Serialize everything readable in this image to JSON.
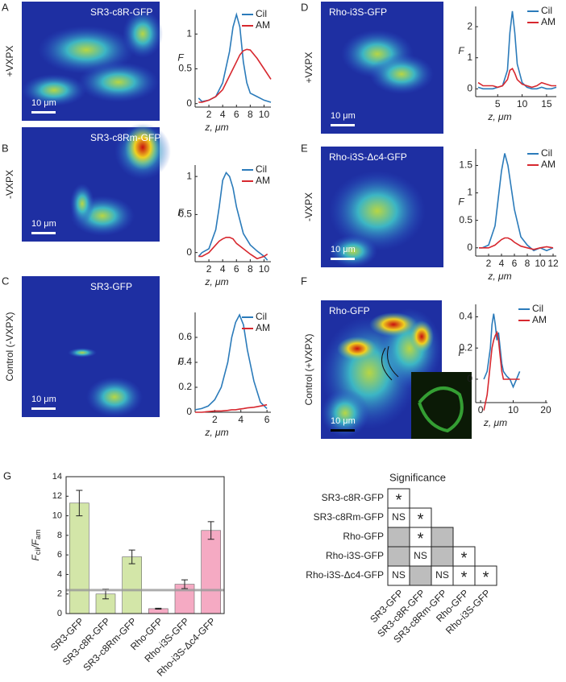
{
  "panels": [
    {
      "letter": "A",
      "condition": "+VXPX",
      "image_label": "SR3-c8R-GFP",
      "scale_bar": "10 μm"
    },
    {
      "letter": "B",
      "condition": "-VXPX",
      "image_label": "SR3-c8Rm-GFP",
      "scale_bar": "10 μm"
    },
    {
      "letter": "C",
      "condition": "Control (-VXPX)",
      "image_label": "SR3-GFP",
      "scale_bar": "10 μm"
    },
    {
      "letter": "D",
      "condition": "+VXPX",
      "image_label": "Rho-i3S-GFP",
      "scale_bar": "10 μm"
    },
    {
      "letter": "E",
      "condition": "-VXPX",
      "image_label": "Rho-i3S-Δc4-GFP",
      "scale_bar": "10 μm"
    },
    {
      "letter": "F",
      "condition": "Control (+VXPX)",
      "image_label": "Rho-GFP",
      "scale_bar": "10 μm"
    }
  ],
  "chart_data": [
    {
      "type": "line",
      "xlabel": "z,  μm",
      "ylabel": "F",
      "xlim": [
        0,
        11
      ],
      "xticks": [
        2,
        4,
        6,
        8,
        10
      ],
      "ylim": [
        -0.05,
        1.35
      ],
      "yticks": [
        0,
        0.5,
        1
      ],
      "x": [
        0.5,
        1,
        2,
        3,
        4,
        5,
        5.5,
        6,
        6.5,
        7,
        7.5,
        8,
        9,
        10,
        11
      ],
      "series": [
        {
          "name": "Cil",
          "color": "#2b7bba",
          "values": [
            0.08,
            0.03,
            0.05,
            0.1,
            0.3,
            0.75,
            1.1,
            1.28,
            1.1,
            0.6,
            0.3,
            0.15,
            0.1,
            0.05,
            0.02
          ]
        },
        {
          "name": "AM",
          "color": "#d7282f",
          "values": [
            0.02,
            0.02,
            0.05,
            0.1,
            0.2,
            0.4,
            0.5,
            0.6,
            0.7,
            0.76,
            0.78,
            0.77,
            0.65,
            0.5,
            0.35
          ]
        }
      ]
    },
    {
      "type": "line",
      "xlabel": "z,  μm",
      "ylabel": "F",
      "xlim": [
        0,
        11
      ],
      "xticks": [
        2,
        4,
        6,
        8,
        10
      ],
      "ylim": [
        -0.12,
        1.15
      ],
      "yticks": [
        0,
        0.5,
        1
      ],
      "x": [
        0.5,
        1,
        2,
        3,
        3.5,
        4,
        4.5,
        5,
        5.5,
        6,
        7,
        8,
        9,
        10,
        10.5
      ],
      "series": [
        {
          "name": "Cil",
          "color": "#2b7bba",
          "values": [
            -0.05,
            0,
            0.05,
            0.3,
            0.6,
            0.95,
            1.05,
            1.0,
            0.85,
            0.6,
            0.25,
            0.1,
            0.02,
            -0.05,
            -0.1
          ]
        },
        {
          "name": "AM",
          "color": "#d7282f",
          "values": [
            -0.05,
            -0.05,
            0,
            0.1,
            0.15,
            0.18,
            0.2,
            0.2,
            0.18,
            0.12,
            0.05,
            -0.02,
            -0.08,
            -0.05,
            -0.02
          ]
        }
      ]
    },
    {
      "type": "line",
      "xlabel": "z,  μm",
      "ylabel": "F",
      "xlim": [
        0.5,
        6.3
      ],
      "xticks": [
        2,
        4,
        6
      ],
      "ylim": [
        0,
        0.8
      ],
      "yticks": [
        0,
        0.2,
        0.4,
        0.6
      ],
      "x": [
        0.5,
        1,
        1.5,
        2,
        2.5,
        3,
        3.3,
        3.6,
        3.9,
        4.2,
        4.5,
        5,
        5.5,
        6
      ],
      "series": [
        {
          "name": "Cil",
          "color": "#2b7bba",
          "values": [
            0.02,
            0.03,
            0.05,
            0.1,
            0.2,
            0.4,
            0.6,
            0.72,
            0.78,
            0.7,
            0.5,
            0.25,
            0.08,
            0.03
          ]
        },
        {
          "name": "AM",
          "color": "#d7282f",
          "values": [
            0,
            0,
            0.005,
            0.01,
            0.01,
            0.015,
            0.02,
            0.02,
            0.025,
            0.03,
            0.035,
            0.04,
            0.05,
            0.06
          ]
        }
      ]
    },
    {
      "type": "line",
      "xlabel": "z,  μm",
      "ylabel": "F",
      "xlim": [
        0.5,
        17
      ],
      "xticks": [
        5,
        10,
        15
      ],
      "ylim": [
        -0.25,
        2.65
      ],
      "yticks": [
        0,
        1,
        2
      ],
      "x": [
        1,
        2,
        4,
        5,
        6,
        7,
        7.5,
        8,
        8.5,
        9,
        10,
        11,
        12,
        13,
        14,
        15,
        16,
        17
      ],
      "series": [
        {
          "name": "Cil",
          "color": "#2b7bba",
          "values": [
            0.05,
            0,
            0,
            0.05,
            0.1,
            0.6,
            1.8,
            2.5,
            1.8,
            0.8,
            0.2,
            0.05,
            0,
            0,
            0.05,
            0,
            0,
            0.05
          ]
        },
        {
          "name": "AM",
          "color": "#d7282f",
          "values": [
            0.2,
            0.1,
            0.1,
            0.05,
            0.1,
            0.3,
            0.6,
            0.65,
            0.5,
            0.3,
            0.15,
            0.1,
            0.05,
            0.1,
            0.2,
            0.15,
            0.1,
            0.1
          ]
        }
      ]
    },
    {
      "type": "line",
      "xlabel": "z,  μm",
      "ylabel": "F",
      "xlim": [
        0,
        12.5
      ],
      "xticks": [
        2,
        4,
        6,
        8,
        10,
        12
      ],
      "ylim": [
        -0.15,
        1.8
      ],
      "yticks": [
        0,
        0.5,
        1,
        1.5
      ],
      "x": [
        0.5,
        1,
        2,
        3,
        3.5,
        4,
        4.5,
        5,
        5.5,
        6,
        7,
        8,
        9,
        10,
        11,
        12
      ],
      "series": [
        {
          "name": "Cil",
          "color": "#2b7bba",
          "values": [
            0,
            0,
            0.05,
            0.4,
            0.9,
            1.4,
            1.72,
            1.5,
            1.1,
            0.7,
            0.2,
            0.05,
            -0.05,
            0,
            -0.05,
            0
          ]
        },
        {
          "name": "AM",
          "color": "#d7282f",
          "values": [
            0,
            0,
            0,
            0.05,
            0.1,
            0.15,
            0.18,
            0.18,
            0.15,
            0.1,
            0.03,
            0,
            -0.03,
            0,
            0.02,
            0
          ]
        }
      ]
    },
    {
      "type": "line",
      "xlabel": "z,  μm",
      "ylabel": "F",
      "xlim": [
        -1.5,
        20.5
      ],
      "xticks": [
        0,
        10,
        20
      ],
      "ylim": [
        -0.15,
        0.48
      ],
      "yticks": [
        0,
        0.2,
        0.4
      ],
      "x": [
        1,
        2,
        3,
        3.5,
        4,
        4.5,
        5,
        5.5,
        6,
        6.5,
        7,
        8,
        9,
        10,
        11,
        12
      ],
      "series": [
        {
          "name": "Cil",
          "color": "#2b7bba",
          "values": [
            0,
            0.05,
            0.2,
            0.35,
            0.42,
            0.35,
            0.25,
            0.3,
            0.2,
            0.1,
            0.05,
            0.02,
            0,
            -0.05,
            0,
            0.05
          ]
        },
        {
          "name": "AM",
          "color": "#d7282f",
          "values": [
            -0.2,
            -0.1,
            0.1,
            0.2,
            0.25,
            0.28,
            0.3,
            0.25,
            0.15,
            0.05,
            0,
            0,
            0,
            0,
            0,
            0
          ]
        }
      ]
    },
    {
      "type": "bar",
      "letter": "G",
      "ylabel": [
        "F",
        "cil",
        "/F",
        "am"
      ],
      "categories": [
        "SR3-GFP",
        "SR3-c8R-GFP",
        "SR3-c8Rm-GFP",
        "Rho-GFP",
        "Rho-i3S-GFP",
        "Rho-i3S-Δc4-GFP"
      ],
      "values": [
        11.3,
        2.0,
        5.8,
        0.5,
        3.0,
        8.5
      ],
      "errors": [
        1.3,
        0.5,
        0.7,
        0.05,
        0.45,
        0.9
      ],
      "colors": [
        "#d3e6a8",
        "#d3e6a8",
        "#d3e6a8",
        "#f5aac3",
        "#f5aac3",
        "#f5aac3"
      ],
      "reference_line": 2.4,
      "ylim": [
        0,
        14
      ],
      "yticks": [
        0,
        2,
        4,
        6,
        8,
        10,
        12,
        14
      ]
    }
  ],
  "significance": {
    "title": "Significance",
    "rows": [
      "SR3-c8R-GFP",
      "SR3-c8Rm-GFP",
      "Rho-GFP",
      "Rho-i3S-GFP",
      "Rho-i3S-Δc4-GFP"
    ],
    "columns": [
      "SR3-GFP",
      "SR3-c8R-GFP",
      "SR3-c8Rm-GFP",
      "Rho-GFP",
      "Rho-i3S-GFP"
    ],
    "cells": [
      [
        "*"
      ],
      [
        "NS",
        "*"
      ],
      [
        null,
        "*",
        null
      ],
      [
        null,
        "NS",
        null,
        "*"
      ],
      [
        "NS",
        null,
        "NS",
        "*",
        "*"
      ]
    ]
  }
}
